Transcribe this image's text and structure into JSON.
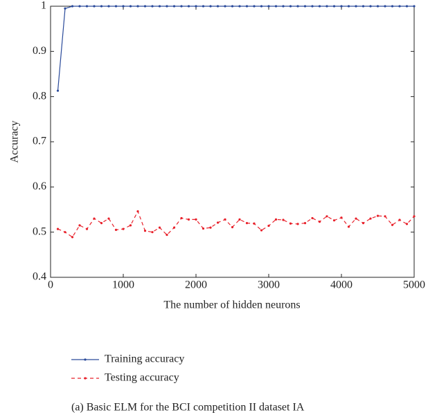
{
  "chart_data": {
    "type": "line",
    "xlabel": "The number of hidden neurons",
    "ylabel": "Accuracy",
    "caption": "(a)  Basic ELM for the BCI competition II dataset IA",
    "x": [
      100,
      200,
      300,
      400,
      500,
      600,
      700,
      800,
      900,
      1000,
      1100,
      1200,
      1300,
      1400,
      1500,
      1600,
      1700,
      1800,
      1900,
      2000,
      2100,
      2200,
      2300,
      2400,
      2500,
      2600,
      2700,
      2800,
      2900,
      3000,
      3100,
      3200,
      3300,
      3400,
      3500,
      3600,
      3700,
      3800,
      3900,
      4000,
      4100,
      4200,
      4300,
      4400,
      4500,
      4600,
      4700,
      4800,
      4900,
      5000
    ],
    "series": [
      {
        "name": "Training accuracy",
        "color": "#2a4a9a",
        "dash": false,
        "values": [
          0.813,
          0.995,
          1,
          1,
          1,
          1,
          1,
          1,
          1,
          1,
          1,
          1,
          1,
          1,
          1,
          1,
          1,
          1,
          1,
          1,
          1,
          1,
          1,
          1,
          1,
          1,
          1,
          1,
          1,
          1,
          1,
          1,
          1,
          1,
          1,
          1,
          1,
          1,
          1,
          1,
          1,
          1,
          1,
          1,
          1,
          1,
          1,
          1,
          1,
          1
        ]
      },
      {
        "name": "Testing accuracy",
        "color": "#e8202a",
        "dash": true,
        "values": [
          0.507,
          0.5,
          0.489,
          0.515,
          0.507,
          0.53,
          0.52,
          0.53,
          0.505,
          0.507,
          0.515,
          0.546,
          0.503,
          0.5,
          0.51,
          0.494,
          0.51,
          0.531,
          0.528,
          0.528,
          0.508,
          0.51,
          0.521,
          0.528,
          0.511,
          0.528,
          0.52,
          0.519,
          0.504,
          0.514,
          0.528,
          0.527,
          0.519,
          0.518,
          0.52,
          0.531,
          0.523,
          0.535,
          0.526,
          0.532,
          0.512,
          0.53,
          0.52,
          0.53,
          0.536,
          0.535,
          0.516,
          0.527,
          0.518,
          0.535
        ]
      }
    ],
    "xlim": [
      0,
      5000
    ],
    "xticks": [
      0,
      1000,
      2000,
      3000,
      4000,
      5000
    ],
    "ylim": [
      0.4,
      1
    ],
    "yticks": [
      0.4,
      0.5,
      0.6,
      0.7,
      0.8,
      0.9,
      1
    ]
  }
}
